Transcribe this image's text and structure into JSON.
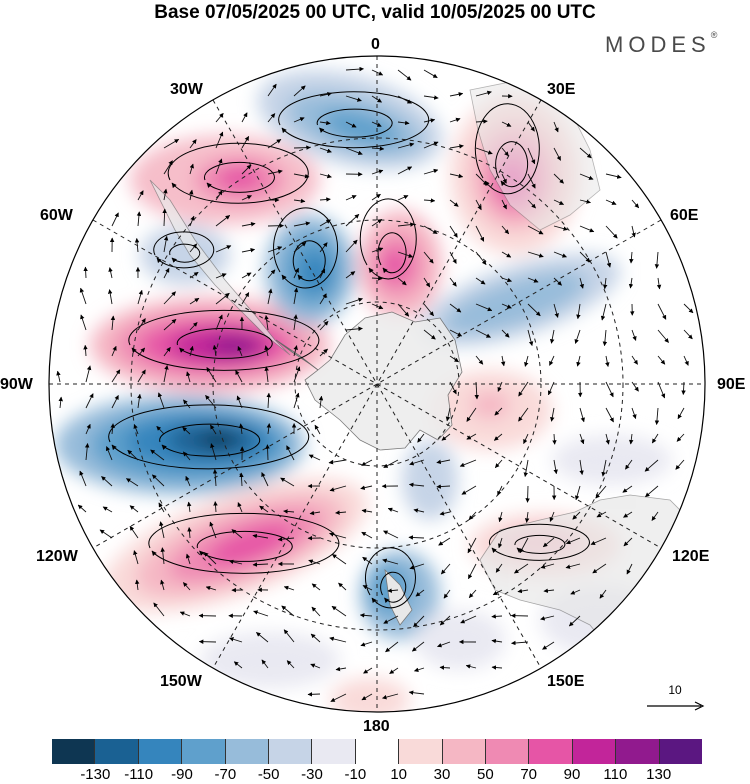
{
  "title": "Base 07/05/2025 00 UTC, valid 10/05/2025 00 UTC",
  "brand": "MODES",
  "brand_mark": "®",
  "longitude_labels": {
    "top": "0",
    "e30": "30E",
    "e60": "60E",
    "e90": "90E",
    "e120": "120E",
    "e150": "150E",
    "bottom": "180",
    "w150": "150W",
    "w120": "120W",
    "w90": "90W",
    "w60": "60W",
    "w30": "30W"
  },
  "reference_vector": {
    "label": "10"
  },
  "colorbar": {
    "colors": [
      "#0e3652",
      "#1a6193",
      "#3585bd",
      "#5fa0cc",
      "#97bcda",
      "#c6d4e7",
      "#e9e9f2",
      "#ffffff",
      "#f9dad9",
      "#f5b7c4",
      "#ef8ab3",
      "#e655a6",
      "#c2259a",
      "#911a8e",
      "#5b1781"
    ],
    "tick_labels": [
      "-130",
      "-110",
      "-90",
      "-70",
      "-50",
      "-30",
      "-10",
      "10",
      "30",
      "50",
      "70",
      "90",
      "110",
      "130"
    ]
  },
  "map_colors": {
    "land": "#ececec",
    "outline": "#000000"
  }
}
